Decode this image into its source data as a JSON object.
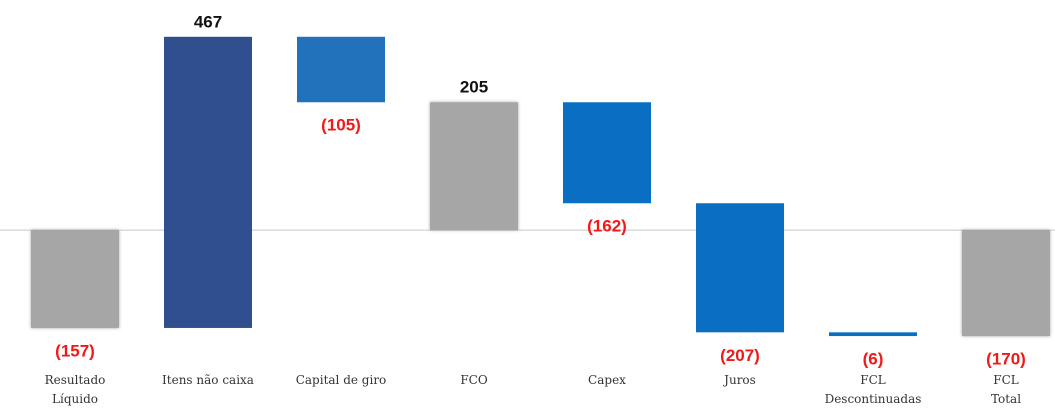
{
  "chart_data": {
    "type": "waterfall",
    "categories": [
      "Resultado\nLíquido",
      "Itens  não  caixa",
      "Capital de giro",
      "FCO",
      "Capex",
      "Juros",
      "FCL\nDescontinuadas",
      "FCL\nTotal"
    ],
    "values": [
      -157,
      467,
      -105,
      205,
      -162,
      -207,
      -6,
      -170
    ],
    "value_labels": [
      "(157)",
      "467",
      "(105)",
      "205",
      "(162)",
      "(207)",
      "(6)",
      "(170)"
    ],
    "measure": [
      "relative",
      "relative",
      "relative",
      "total",
      "relative",
      "relative",
      "relative",
      "total"
    ],
    "colors": [
      "#a6a6a6",
      "#2f4f8f",
      "#2272bb",
      "#a6a6a6",
      "#0a6fc2",
      "#0a6fc2",
      "#0a6fc2",
      "#a6a6a6"
    ],
    "ylim": [
      -295,
      369
    ]
  }
}
